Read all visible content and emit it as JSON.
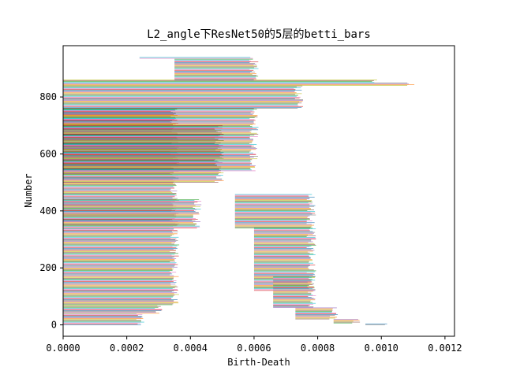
{
  "chart_data": {
    "type": "bar",
    "orientation": "horizontal",
    "title": "L2_angle下ResNet50的5层的betti_bars",
    "xlabel": "Birth-Death",
    "ylabel": "Number",
    "xlim": [
      0,
      0.00123
    ],
    "ylim": [
      -40,
      980
    ],
    "x_ticks": [
      "0.0000",
      "0.0002",
      "0.0004",
      "0.0006",
      "0.0008",
      "0.0010",
      "0.0012"
    ],
    "x_tick_values": [
      0,
      0.0002,
      0.0004,
      0.0006,
      0.0008,
      0.001,
      0.0012
    ],
    "y_ticks": [
      "0",
      "200",
      "400",
      "600",
      "800"
    ],
    "y_tick_values": [
      0,
      200,
      400,
      600,
      800
    ],
    "grid": false,
    "bar_count": 940,
    "bars": [
      {
        "y_from": 0,
        "y_to": 40,
        "birth": 0,
        "death": 0.00024
      },
      {
        "y_from": 40,
        "y_to": 70,
        "birth": 0,
        "death": 0.0003
      },
      {
        "y_from": 70,
        "y_to": 440,
        "birth": 0,
        "death": 0.00035
      },
      {
        "y_from": 340,
        "y_to": 440,
        "birth": 0,
        "death": 0.00042
      },
      {
        "y_from": 440,
        "y_to": 760,
        "birth": 0,
        "death": 0.00035
      },
      {
        "y_from": 500,
        "y_to": 700,
        "birth": 0,
        "death": 0.00049
      },
      {
        "y_from": 540,
        "y_to": 760,
        "birth": 0,
        "death": 0.0006
      },
      {
        "y_from": 760,
        "y_to": 840,
        "birth": 0,
        "death": 0.00074
      },
      {
        "y_from": 840,
        "y_to": 850,
        "birth": 0,
        "death": 0.00109
      },
      {
        "y_from": 850,
        "y_to": 860,
        "birth": 0,
        "death": 0.00098
      },
      {
        "y_from": 860,
        "y_to": 935,
        "birth": 0.00035,
        "death": 0.0006
      },
      {
        "y_from": 935,
        "y_to": 940,
        "birth": 0.00024,
        "death": 0.0006
      },
      {
        "y_from": 340,
        "y_to": 460,
        "birth": 0.00054,
        "death": 0.00078
      },
      {
        "y_from": 120,
        "y_to": 340,
        "birth": 0.0006,
        "death": 0.00078
      },
      {
        "y_from": 60,
        "y_to": 170,
        "birth": 0.00066,
        "death": 0.00078
      },
      {
        "y_from": 20,
        "y_to": 60,
        "birth": 0.00073,
        "death": 0.00085
      },
      {
        "y_from": 6,
        "y_to": 20,
        "birth": 0.00085,
        "death": 0.00092
      },
      {
        "y_from": 0,
        "y_to": 6,
        "birth": 0.00095,
        "death": 0.00101
      }
    ],
    "colors": [
      "#1f77b4",
      "#ff7f0e",
      "#2ca02c",
      "#d62728",
      "#9467bd",
      "#8c564b",
      "#e377c2",
      "#7f7f7f",
      "#bcbd22",
      "#17becf"
    ]
  }
}
